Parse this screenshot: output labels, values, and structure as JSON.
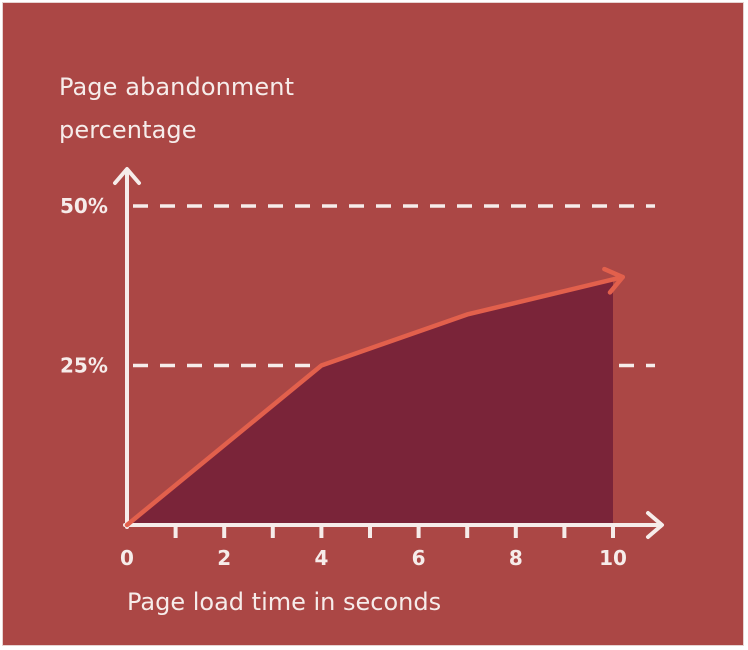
{
  "colors": {
    "background": "#ab4745",
    "area_fill": "#7a2439",
    "line": "#e2604c",
    "axis": "#f6ecea",
    "text": "#f6ecea",
    "gridline": "#f6ecea"
  },
  "chart_data": {
    "type": "area",
    "title": "",
    "ylabel_lines": [
      "Page abandonment",
      "percentage"
    ],
    "xlabel": "Page load time in seconds",
    "xlim": [
      0,
      10
    ],
    "ylim": [
      0,
      50
    ],
    "x_ticks": [
      0,
      1,
      2,
      3,
      4,
      5,
      6,
      7,
      8,
      9,
      10
    ],
    "x_tick_labels": [
      {
        "value": 0,
        "label": "0"
      },
      {
        "value": 2,
        "label": "2"
      },
      {
        "value": 4,
        "label": "4"
      },
      {
        "value": 6,
        "label": "6"
      },
      {
        "value": 8,
        "label": "8"
      },
      {
        "value": 10,
        "label": "10"
      }
    ],
    "y_ticks": [
      {
        "value": 25,
        "label": "25%"
      },
      {
        "value": 50,
        "label": "50%"
      }
    ],
    "grid": "dashed horizontal lines at 25% and 50%",
    "legend": "none",
    "series": [
      {
        "x": [
          0,
          4,
          7,
          10
        ],
        "y": [
          0,
          25,
          33,
          38.5
        ]
      }
    ]
  }
}
